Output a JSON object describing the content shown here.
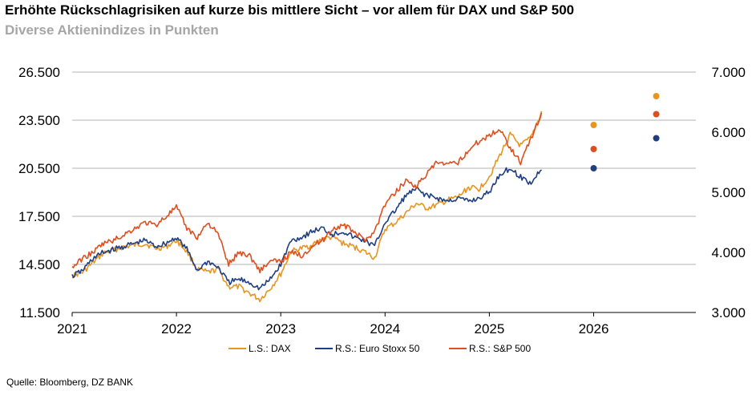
{
  "header": {
    "title": "Erhöhte Rückschlagrisiken auf kurze bis mittlere Sicht – vor allem für DAX und S&P 500",
    "subtitle": "Diverse Aktienindizes in Punkten"
  },
  "footer": {
    "source": "Quelle: Bloomberg, DZ BANK"
  },
  "colors": {
    "dax": "#e8951e",
    "stoxx": "#1f3f82",
    "sp500": "#dc4f1f",
    "grid": "#9a9a9a"
  },
  "chart_data": {
    "type": "line",
    "title": "Erhöhte Rückschlagrisiken auf kurze bis mittlere Sicht – vor allem für DAX und S&P 500",
    "subtitle": "Diverse Aktienindizes in Punkten",
    "x_ticks": [
      "2021",
      "2022",
      "2023",
      "2024",
      "2025",
      "2026"
    ],
    "x_range": [
      2021.0,
      2026.98
    ],
    "y_left": {
      "ticks": [
        "11.500",
        "14.500",
        "17.500",
        "20.500",
        "23.500",
        "26.500"
      ],
      "range": [
        11500,
        26500
      ]
    },
    "y_right": {
      "ticks": [
        "3.000",
        "4.000",
        "5.000",
        "6.000",
        "7.000"
      ],
      "range": [
        3000,
        7000
      ]
    },
    "grid": "horizontal",
    "legend_position": "bottom",
    "series": [
      {
        "name": "L.S.: DAX",
        "axis": "left",
        "key": "dax",
        "x": [
          2021.0,
          2021.1,
          2021.2,
          2021.3,
          2021.4,
          2021.5,
          2021.6,
          2021.7,
          2021.8,
          2021.9,
          2022.0,
          2022.1,
          2022.2,
          2022.3,
          2022.4,
          2022.5,
          2022.6,
          2022.7,
          2022.8,
          2022.9,
          2023.0,
          2023.1,
          2023.2,
          2023.3,
          2023.4,
          2023.5,
          2023.6,
          2023.7,
          2023.8,
          2023.9,
          2024.0,
          2024.1,
          2024.2,
          2024.3,
          2024.4,
          2024.5,
          2024.6,
          2024.7,
          2024.8,
          2024.9,
          2025.0,
          2025.1,
          2025.2,
          2025.3,
          2025.4,
          2025.5
        ],
        "y": [
          13800,
          14000,
          14600,
          15200,
          15400,
          15600,
          15700,
          15800,
          15500,
          15600,
          16000,
          15300,
          14200,
          14000,
          14200,
          13100,
          13100,
          12700,
          12300,
          13000,
          13900,
          15300,
          15500,
          15700,
          16100,
          16200,
          15800,
          15600,
          15300,
          14900,
          16700,
          17100,
          17700,
          18300,
          18000,
          18200,
          18500,
          18700,
          19300,
          19200,
          20000,
          21300,
          22600,
          21900,
          22400,
          24000
        ]
      },
      {
        "name": "R.S.: Euro Stoxx 50",
        "axis": "right",
        "key": "stoxx",
        "x": [
          2021.0,
          2021.1,
          2021.2,
          2021.3,
          2021.4,
          2021.5,
          2021.6,
          2021.7,
          2021.8,
          2021.9,
          2022.0,
          2022.1,
          2022.2,
          2022.3,
          2022.4,
          2022.5,
          2022.6,
          2022.7,
          2022.8,
          2022.9,
          2023.0,
          2023.1,
          2023.2,
          2023.3,
          2023.4,
          2023.5,
          2023.6,
          2023.7,
          2023.8,
          2023.9,
          2024.0,
          2024.1,
          2024.2,
          2024.3,
          2024.4,
          2024.5,
          2024.6,
          2024.7,
          2024.8,
          2024.9,
          2025.0,
          2025.1,
          2025.2,
          2025.3,
          2025.4,
          2025.5
        ],
        "y": [
          3600,
          3700,
          3900,
          4000,
          4050,
          4100,
          4150,
          4200,
          4100,
          4150,
          4250,
          4050,
          3700,
          3850,
          3750,
          3500,
          3550,
          3500,
          3400,
          3550,
          3800,
          4200,
          4250,
          4350,
          4400,
          4300,
          4350,
          4250,
          4200,
          4100,
          4500,
          4700,
          4950,
          5050,
          4950,
          4900,
          4850,
          4900,
          4850,
          4900,
          5000,
          5300,
          5400,
          5250,
          5150,
          5400
        ]
      },
      {
        "name": "R.S.: S&P 500",
        "axis": "right",
        "key": "sp500",
        "x": [
          2021.0,
          2021.1,
          2021.2,
          2021.3,
          2021.4,
          2021.5,
          2021.6,
          2021.7,
          2021.8,
          2021.9,
          2022.0,
          2022.1,
          2022.2,
          2022.3,
          2022.4,
          2022.5,
          2022.6,
          2022.7,
          2022.8,
          2022.9,
          2023.0,
          2023.1,
          2023.2,
          2023.3,
          2023.4,
          2023.5,
          2023.6,
          2023.7,
          2023.8,
          2023.9,
          2024.0,
          2024.1,
          2024.2,
          2024.3,
          2024.4,
          2024.5,
          2024.6,
          2024.7,
          2024.8,
          2024.9,
          2025.0,
          2025.1,
          2025.2,
          2025.3,
          2025.4,
          2025.5
        ],
        "y": [
          3750,
          3900,
          4000,
          4150,
          4200,
          4300,
          4400,
          4500,
          4450,
          4600,
          4750,
          4400,
          4250,
          4500,
          4300,
          3800,
          4000,
          3950,
          3700,
          3850,
          3850,
          4000,
          3950,
          4100,
          4200,
          4400,
          4450,
          4350,
          4200,
          4350,
          4800,
          5000,
          5200,
          5100,
          5300,
          5500,
          5450,
          5500,
          5700,
          5850,
          5950,
          6050,
          5750,
          5500,
          5900,
          6300
        ]
      }
    ],
    "forecast_points": [
      {
        "key": "dax",
        "axis": "left",
        "x": 2026.0,
        "values": [
          23200,
          21700,
          20500
        ]
      },
      {
        "key": "dax",
        "axis": "right",
        "x": 2026.6,
        "values": [
          6600
        ]
      },
      {
        "key": "sp500",
        "axis": "right",
        "x": 2026.6,
        "values": [
          6300
        ]
      },
      {
        "key": "stoxx",
        "axis": "right",
        "x": 2026.6,
        "values": [
          5900
        ]
      }
    ]
  }
}
